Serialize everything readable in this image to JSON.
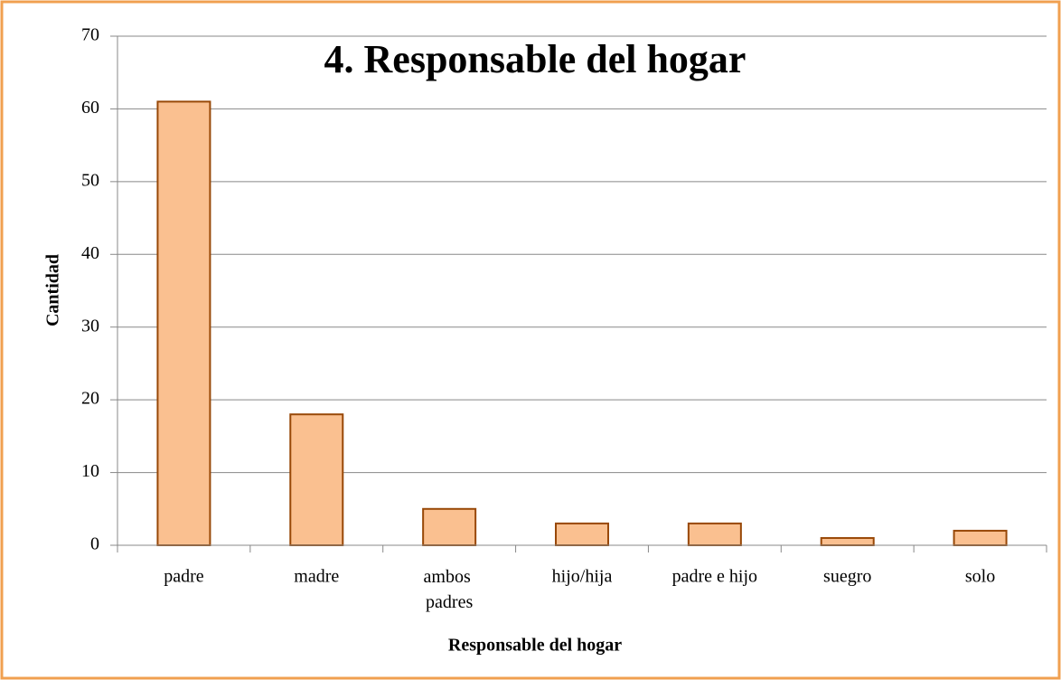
{
  "chart_data": {
    "type": "bar",
    "title": "4. Responsable del hogar",
    "x_label": "Responsable del hogar",
    "y_label": "Cantidad",
    "categories": [
      "padre",
      "madre",
      "ambos padres",
      "hijo/hija",
      "padre e hijo",
      "suegro",
      "solo"
    ],
    "values": [
      61,
      18,
      5,
      3,
      3,
      1,
      2
    ],
    "color": "#fac090",
    "ylim": [
      0,
      70
    ],
    "yticks": [
      0,
      10,
      20,
      30,
      40,
      50,
      60,
      70
    ],
    "grid": true
  }
}
